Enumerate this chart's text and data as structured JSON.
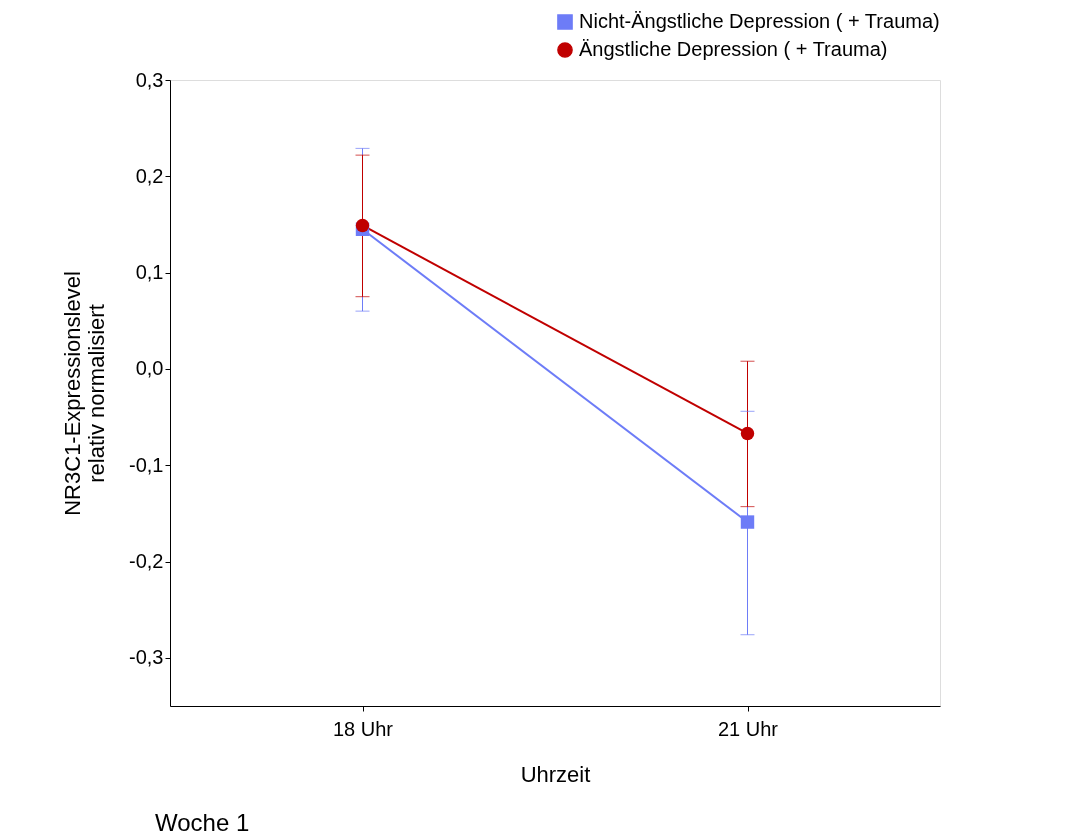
{
  "chart_data": {
    "type": "line",
    "xlabel": "Uhrzeit",
    "ylabel": "NR3C1-Expressionslevel\nrelativ normalisiert",
    "categories": [
      "18 Uhr",
      "21 Uhr"
    ],
    "series": [
      {
        "name": "Nicht-Ängstliche Depression ( + Trauma)",
        "color": "#6d7cf7",
        "marker": "square",
        "values": [
          0.145,
          -0.159
        ],
        "errors": [
          [
            0.06,
            0.229
          ],
          [
            -0.276,
            -0.044
          ]
        ]
      },
      {
        "name": "Ängstliche Depression ( + Trauma)",
        "color": "#c00000",
        "marker": "circle",
        "values": [
          0.149,
          -0.067
        ],
        "errors": [
          [
            0.075,
            0.222
          ],
          [
            -0.143,
            0.008
          ]
        ]
      }
    ],
    "ylim": [
      -0.35,
      0.3
    ],
    "yticks": [
      {
        "value": -0.3,
        "label": "-0,3"
      },
      {
        "value": -0.2,
        "label": "-0,2"
      },
      {
        "value": -0.1,
        "label": "-0,1"
      },
      {
        "value": 0,
        "label": "0,0"
      },
      {
        "value": 0.1,
        "label": "0,1"
      },
      {
        "value": 0.2,
        "label": "0,2"
      },
      {
        "value": 0.3,
        "label": "0,3"
      }
    ],
    "grid": false,
    "legend": "top right",
    "line_style": "solid",
    "annotations": [
      "Woche 1"
    ]
  }
}
